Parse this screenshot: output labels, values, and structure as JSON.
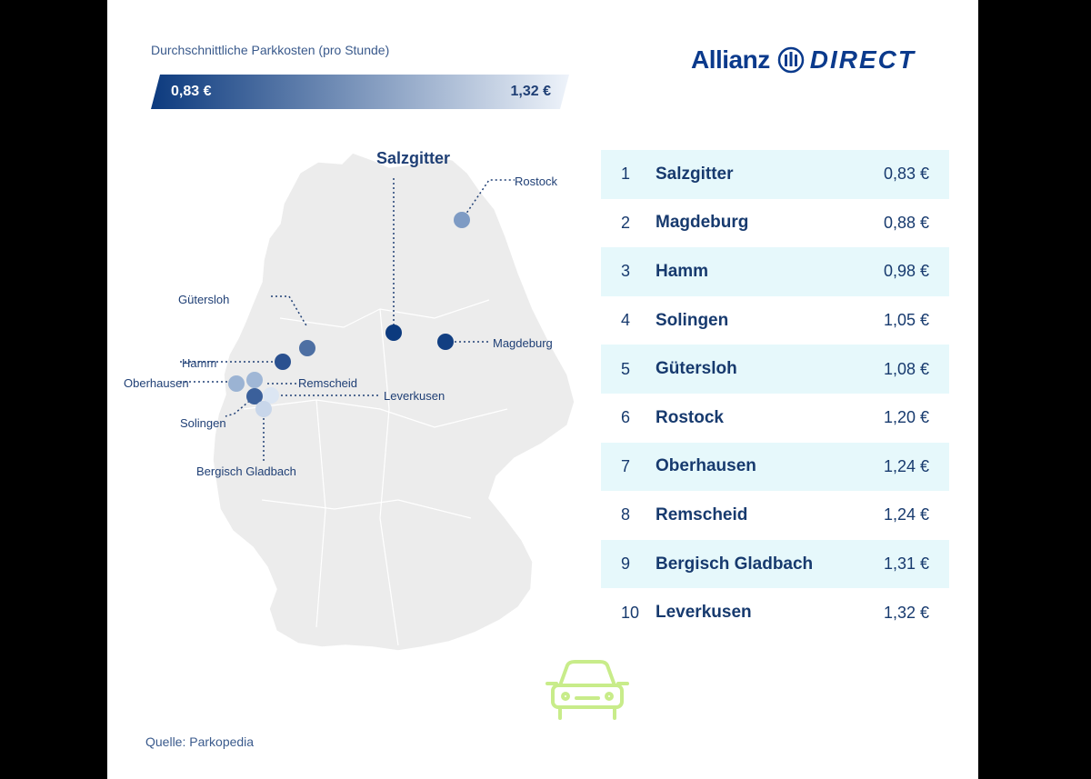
{
  "legend": {
    "title": "Durchschnittliche Parkkosten (pro Stunde)",
    "min_label": "0,83 €",
    "max_label": "1,32 €",
    "color_dark": "#0c3a7e",
    "color_light": "#e6edf7"
  },
  "logo": {
    "brand": "Allianz",
    "product": "DIRECT",
    "emblem_icon": "allianz-eagle-icon"
  },
  "map": {
    "base_color": "#ececec",
    "region": "Germany",
    "cities": [
      {
        "name": "Salzgitter",
        "price": 0.83
      },
      {
        "name": "Rostock",
        "price": 1.2
      },
      {
        "name": "Gütersloh",
        "price": 1.08
      },
      {
        "name": "Magdeburg",
        "price": 0.88
      },
      {
        "name": "Hamm",
        "price": 0.98
      },
      {
        "name": "Oberhausen",
        "price": 1.24
      },
      {
        "name": "Remscheid",
        "price": 1.24
      },
      {
        "name": "Leverkusen",
        "price": 1.32
      },
      {
        "name": "Solingen",
        "price": 1.05
      },
      {
        "name": "Bergisch Gladbach",
        "price": 1.31
      }
    ]
  },
  "ranking": [
    {
      "rank": "1",
      "city": "Salzgitter",
      "price": "0,83 €"
    },
    {
      "rank": "2",
      "city": "Magdeburg",
      "price": "0,88 €"
    },
    {
      "rank": "3",
      "city": "Hamm",
      "price": "0,98 €"
    },
    {
      "rank": "4",
      "city": "Solingen",
      "price": "1,05 €"
    },
    {
      "rank": "5",
      "city": "Gütersloh",
      "price": "1,08 €"
    },
    {
      "rank": "6",
      "city": "Rostock",
      "price": "1,20 €"
    },
    {
      "rank": "7",
      "city": "Oberhausen",
      "price": "1,24 €"
    },
    {
      "rank": "8",
      "city": "Remscheid",
      "price": "1,24 €"
    },
    {
      "rank": "9",
      "city": "Bergisch Gladbach",
      "price": "1,31 €"
    },
    {
      "rank": "10",
      "city": "Leverkusen",
      "price": "1,32 €"
    }
  ],
  "source": "Quelle: Parkopedia",
  "icons": {
    "car": "car-icon"
  },
  "colors": {
    "accent": "#0c3a7e",
    "row_highlight": "#e6f8fb",
    "car_green": "#c8ec8a"
  }
}
